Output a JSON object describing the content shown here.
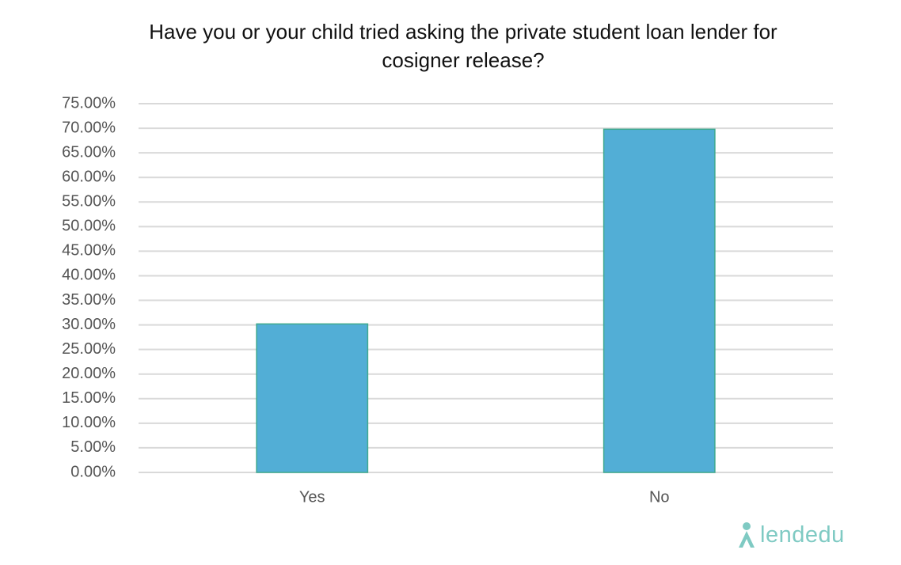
{
  "chart_data": {
    "type": "bar",
    "title": "Have you or your child tried asking the private student loan lender for cosigner release?",
    "categories": [
      "Yes",
      "No"
    ],
    "values": [
      30.2,
      69.8
    ],
    "color": "#52aed6",
    "ylim": [
      0,
      75
    ],
    "yticks": [
      {
        "value": 0,
        "label": "0.00%"
      },
      {
        "value": 5,
        "label": "5.00%"
      },
      {
        "value": 10,
        "label": "10.00%"
      },
      {
        "value": 15,
        "label": "15.00%"
      },
      {
        "value": 20,
        "label": "20.00%"
      },
      {
        "value": 25,
        "label": "25.00%"
      },
      {
        "value": 30,
        "label": "30.00%"
      },
      {
        "value": 35,
        "label": "35.00%"
      },
      {
        "value": 40,
        "label": "40.00%"
      },
      {
        "value": 45,
        "label": "45.00%"
      },
      {
        "value": 50,
        "label": "50.00%"
      },
      {
        "value": 55,
        "label": "55.00%"
      },
      {
        "value": 60,
        "label": "60.00%"
      },
      {
        "value": 65,
        "label": "65.00%"
      },
      {
        "value": 70,
        "label": "70.00%"
      },
      {
        "value": 75,
        "label": "75.00%"
      }
    ],
    "grid": true
  },
  "logo": "lendedu"
}
